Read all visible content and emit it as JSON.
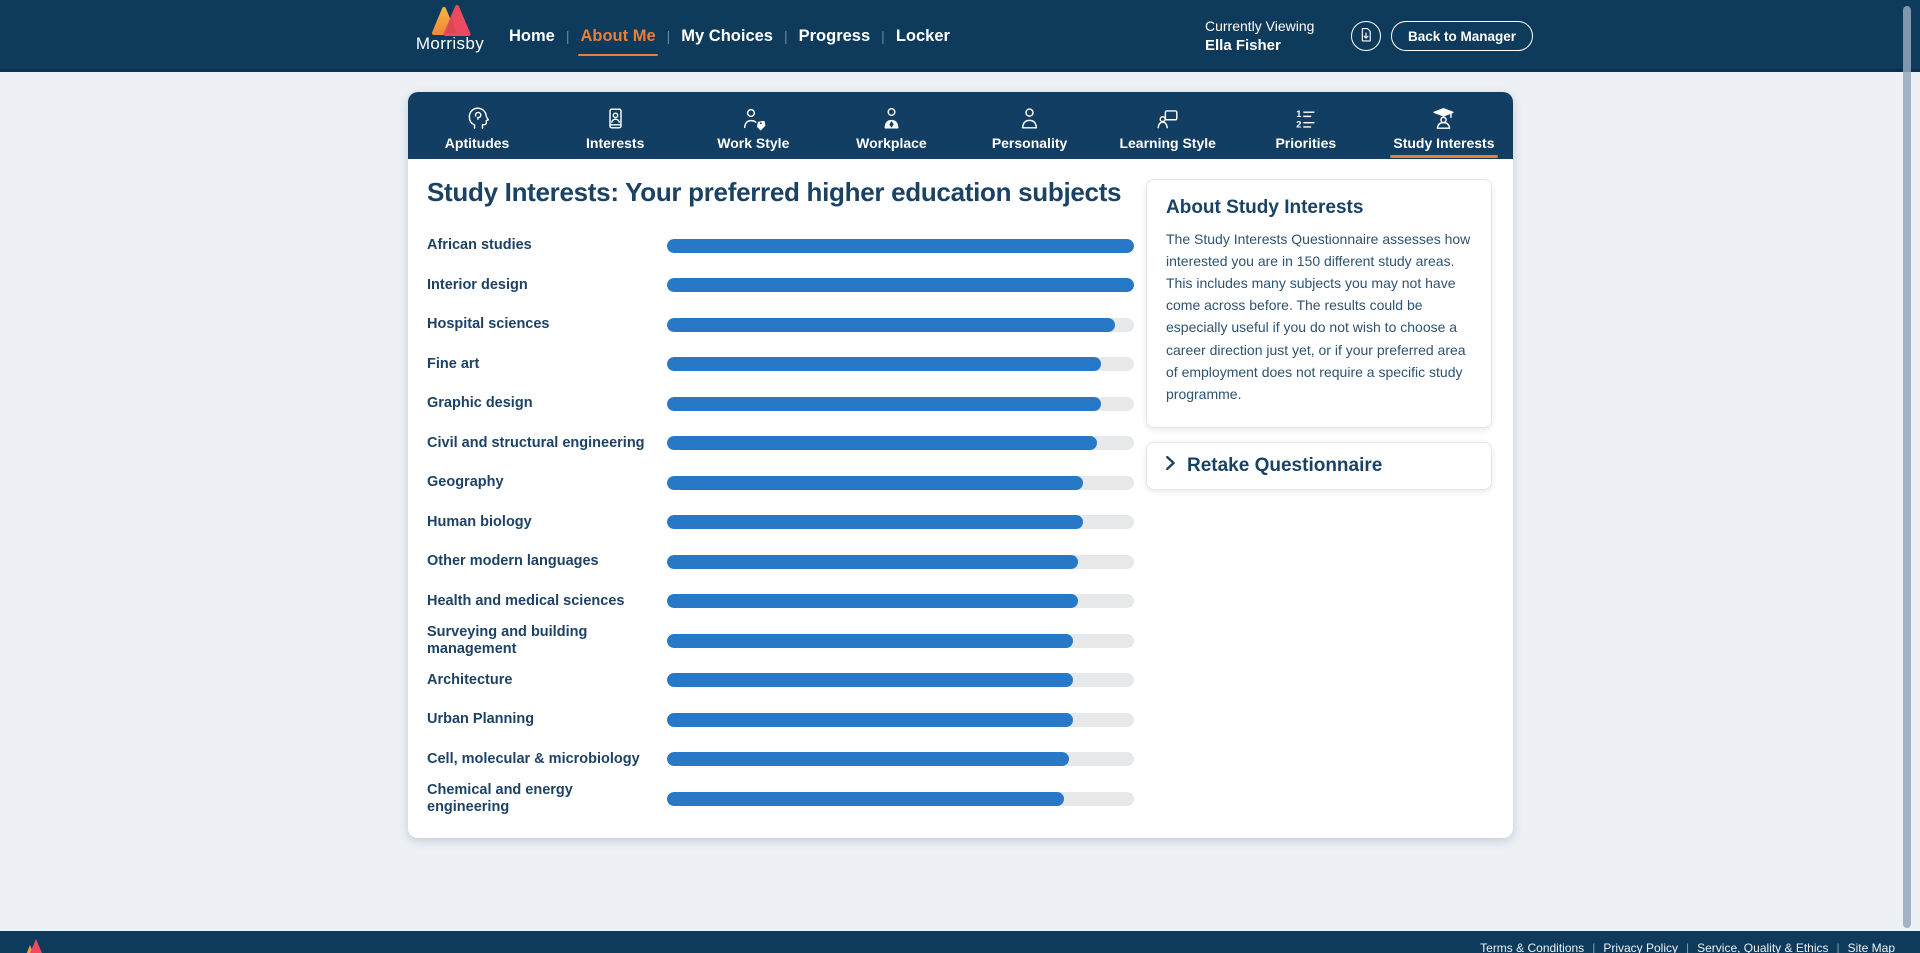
{
  "header": {
    "brand": "Morrisby",
    "separator": "|",
    "nav": [
      {
        "label": "Home",
        "active": false
      },
      {
        "label": "About Me",
        "active": true
      },
      {
        "label": "My Choices",
        "active": false
      },
      {
        "label": "Progress",
        "active": false
      },
      {
        "label": "Locker",
        "active": false
      }
    ],
    "viewing_label": "Currently Viewing",
    "viewing_name": "Ella Fisher",
    "report_button_icon": "document-download-icon",
    "back_button_label": "Back to Manager"
  },
  "tabs": [
    {
      "label": "Aptitudes",
      "icon": "head-profile-icon",
      "active": false
    },
    {
      "label": "Interests",
      "icon": "id-card-icon",
      "active": false
    },
    {
      "label": "Work Style",
      "icon": "person-tag-icon",
      "active": false
    },
    {
      "label": "Workplace",
      "icon": "person-suit-icon",
      "active": false
    },
    {
      "label": "Personality",
      "icon": "person-icon",
      "active": false
    },
    {
      "label": "Learning Style",
      "icon": "person-screen-icon",
      "active": false
    },
    {
      "label": "Priorities",
      "icon": "numbered-list-icon",
      "active": false
    },
    {
      "label": "Study Interests",
      "icon": "graduate-icon",
      "active": true
    }
  ],
  "main": {
    "title": "Study Interests: Your preferred higher education subjects",
    "chart_data": {
      "type": "bar",
      "orientation": "horizontal",
      "title": "Study Interests: Your preferred higher education subjects",
      "categories": [
        "African studies",
        "Interior design",
        "Hospital sciences",
        "Fine art",
        "Graphic design",
        "Civil and structural engineering",
        "Geography",
        "Human biology",
        "Other modern languages",
        "Health and medical sciences",
        "Surveying and building\nmanagement",
        "Architecture",
        "Urban Planning",
        "Cell, molecular & microbiology",
        "Chemical and energy\nengineering"
      ],
      "values": [
        100,
        100,
        96,
        93,
        93,
        92,
        89,
        89,
        88,
        88,
        87,
        87,
        87,
        86,
        85
      ],
      "xlim": [
        0,
        100
      ],
      "grid": false,
      "legend": false,
      "bar_color": "#2878c8",
      "track_color": "#e7e8ea"
    }
  },
  "sidebar": {
    "about": {
      "title": "About Study Interests",
      "body": "The Study Interests Questionnaire assesses how interested you are in 150 different study areas. This includes many subjects you may not have come across before. The results could be especially useful if you do not wish to choose a career direction just yet, or if your preferred area of employment does not require a specific study programme."
    },
    "retake": {
      "label": "Retake Questionnaire",
      "icon": "chevron-right-icon"
    }
  },
  "footer": {
    "separator": "|",
    "links": [
      "Terms & Conditions",
      "Privacy Policy",
      "Service, Quality & Ethics",
      "Site Map"
    ]
  },
  "colors": {
    "header_bg": "#0e3a5c",
    "tabbar_bg": "#123e63",
    "page_bg": "#edf1f5",
    "card_bg": "#ffffff",
    "accent_orange": "#ed7d3b",
    "bar_blue": "#2878c8",
    "bar_track": "#e7e8ea",
    "navy_text": "#1a4265",
    "body_text": "#2d5372",
    "logo_orange": "#f6a13c",
    "logo_pink": "#ee4a5f"
  }
}
